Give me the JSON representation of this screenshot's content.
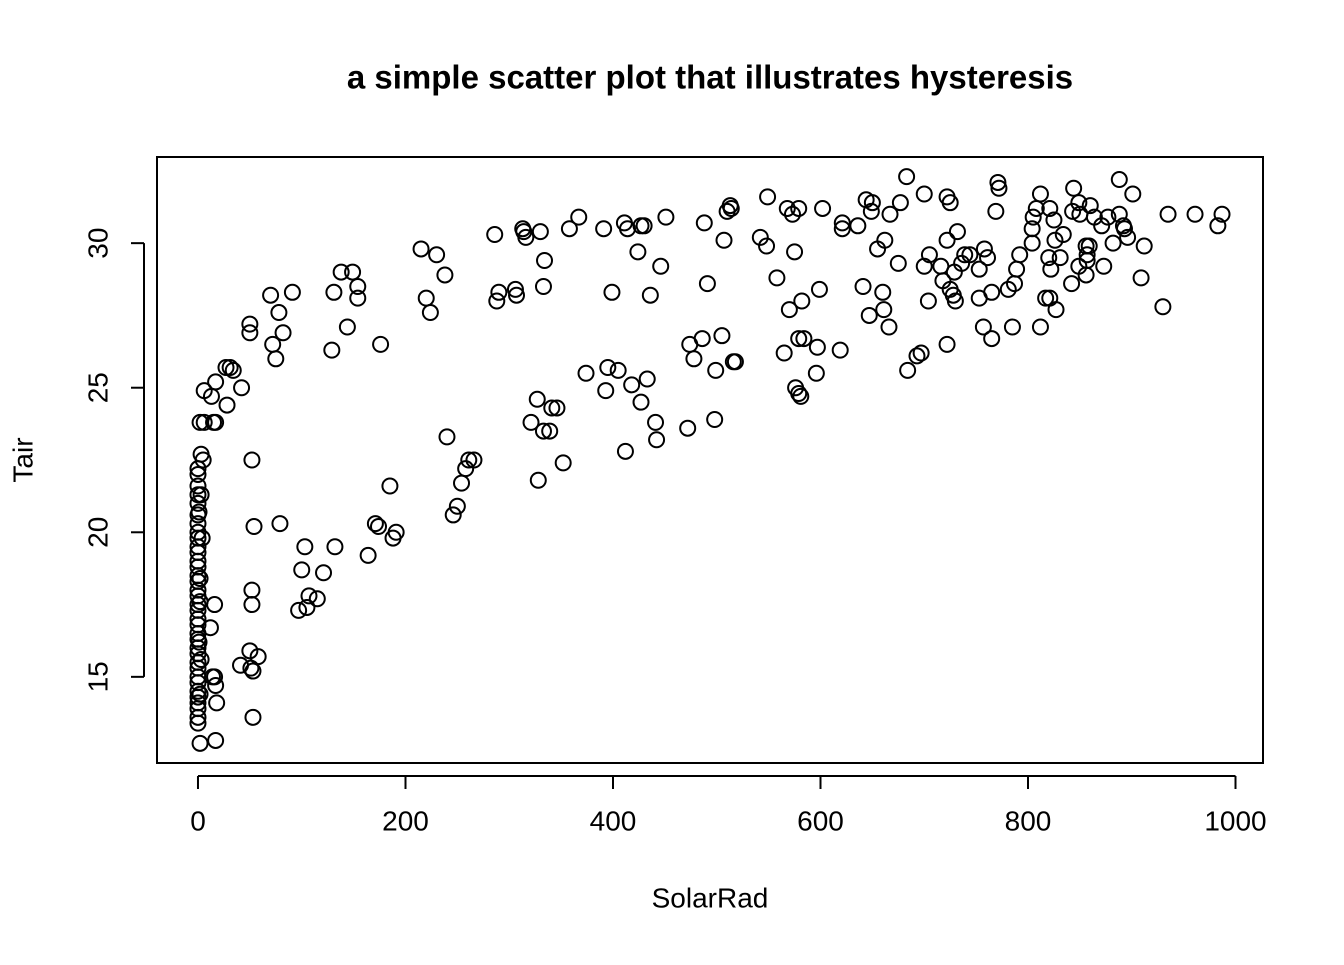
{
  "chart_data": {
    "type": "scatter",
    "title": "a simple scatter plot that illustrates hysteresis",
    "xlabel": "SolarRad",
    "ylabel": "Tair",
    "xlim": [
      -39.5,
      1026.5
    ],
    "ylim": [
      12.02,
      32.98
    ],
    "xticks": [
      0,
      200,
      400,
      600,
      800,
      1000
    ],
    "yticks": [
      15,
      20,
      25,
      30
    ],
    "color": "#000000",
    "grid": false,
    "x": [
      70,
      78,
      82,
      72,
      75,
      50,
      50,
      91,
      42,
      27,
      31,
      34,
      28,
      17,
      13,
      6,
      2,
      6,
      15,
      17,
      3,
      5,
      52,
      131,
      138,
      149,
      154,
      154,
      144,
      129,
      176,
      215,
      230,
      238,
      220,
      224,
      286,
      290,
      288,
      306,
      307,
      313,
      314,
      316,
      330,
      334,
      333,
      358,
      367,
      391,
      399,
      411,
      414,
      427,
      430,
      424,
      436,
      446,
      451,
      488,
      491,
      507,
      510,
      513,
      514,
      549,
      542,
      548,
      558,
      568,
      573,
      579,
      575,
      602,
      582,
      570,
      599,
      621,
      621,
      636,
      644,
      650,
      649,
      655,
      662,
      667,
      675,
      677,
      683,
      700,
      641,
      660,
      661,
      647,
      666,
      705,
      700,
      704,
      716,
      722,
      725,
      722,
      732,
      718,
      725,
      728,
      730,
      729,
      739,
      744,
      736,
      753,
      758,
      761,
      765,
      753,
      771,
      772,
      769,
      781,
      787,
      789,
      792,
      804,
      804,
      805,
      808,
      812,
      821,
      825,
      826,
      820,
      822,
      831,
      834,
      817,
      821,
      827,
      844,
      849,
      843,
      850,
      860,
      864,
      871,
      877,
      856,
      859,
      857,
      857,
      849,
      856,
      842,
      873,
      882,
      888,
      888,
      892,
      893,
      896,
      901,
      912,
      909,
      930,
      935,
      961,
      983,
      987,
      812,
      785,
      757,
      765,
      722,
      697,
      693,
      684,
      565,
      579,
      584,
      597,
      619,
      576,
      579,
      581,
      596,
      516,
      518,
      505,
      499,
      498,
      486,
      474,
      478,
      472,
      441,
      433,
      427,
      418,
      405,
      395,
      393,
      412,
      442,
      374,
      352,
      341,
      346,
      339,
      333,
      327,
      321,
      328,
      266,
      261,
      258,
      254,
      250,
      246,
      240,
      185,
      191,
      188,
      171,
      174,
      164,
      132,
      103,
      100,
      121,
      115,
      107,
      105,
      97,
      79,
      54,
      52,
      52,
      16,
      12,
      50,
      58,
      41,
      51,
      53,
      53,
      14,
      16,
      17,
      18,
      17,
      2,
      0,
      0,
      0,
      0,
      0,
      0,
      0,
      0,
      0,
      0,
      0,
      0,
      0,
      0,
      0,
      0,
      0,
      0,
      0,
      0,
      0,
      0,
      0,
      0,
      0,
      0,
      0,
      0,
      0,
      0,
      0,
      0,
      0,
      0,
      0,
      2,
      3,
      1,
      4,
      3,
      1,
      2,
      2
    ],
    "values": [
      28.2,
      27.6,
      26.9,
      26.5,
      26.0,
      27.2,
      26.9,
      28.3,
      25.0,
      25.7,
      25.7,
      25.6,
      24.4,
      25.2,
      24.7,
      24.9,
      23.8,
      23.8,
      23.8,
      23.8,
      22.7,
      22.5,
      22.5,
      28.3,
      29.0,
      29.0,
      28.5,
      28.1,
      27.1,
      26.3,
      26.5,
      29.8,
      29.6,
      28.9,
      28.1,
      27.6,
      30.3,
      28.3,
      28.0,
      28.4,
      28.2,
      30.5,
      30.4,
      30.2,
      30.4,
      29.4,
      28.5,
      30.5,
      30.9,
      30.5,
      28.3,
      30.7,
      30.5,
      30.6,
      30.6,
      29.7,
      28.2,
      29.2,
      30.9,
      30.7,
      28.6,
      30.1,
      31.1,
      31.3,
      31.2,
      31.6,
      30.2,
      29.9,
      28.8,
      31.2,
      31.0,
      31.2,
      29.7,
      31.2,
      28.0,
      27.7,
      28.4,
      30.7,
      30.5,
      30.6,
      31.5,
      31.4,
      31.1,
      29.8,
      30.1,
      31.0,
      29.3,
      31.4,
      32.3,
      31.7,
      28.5,
      28.3,
      27.7,
      27.5,
      27.1,
      29.6,
      29.2,
      28.0,
      29.2,
      31.6,
      31.4,
      30.1,
      30.4,
      28.7,
      28.4,
      28.2,
      28.0,
      29.0,
      29.6,
      29.6,
      29.3,
      29.1,
      29.8,
      29.5,
      28.3,
      28.1,
      32.1,
      31.9,
      31.1,
      28.4,
      28.6,
      29.1,
      29.6,
      30.0,
      30.5,
      30.9,
      31.2,
      31.7,
      31.2,
      30.8,
      30.1,
      29.5,
      29.1,
      29.5,
      30.3,
      28.1,
      28.1,
      27.7,
      31.9,
      31.4,
      31.1,
      31.0,
      31.3,
      30.9,
      30.6,
      30.9,
      29.9,
      29.9,
      29.6,
      29.4,
      29.2,
      28.9,
      28.6,
      29.2,
      30.0,
      32.2,
      31.0,
      30.6,
      30.5,
      30.2,
      31.7,
      29.9,
      28.8,
      27.8,
      31.0,
      31.0,
      30.6,
      31.0,
      27.1,
      27.1,
      27.1,
      26.7,
      26.5,
      26.2,
      26.1,
      25.6,
      26.2,
      26.7,
      26.7,
      26.4,
      26.3,
      25.0,
      24.8,
      24.7,
      25.5,
      25.9,
      25.9,
      26.8,
      25.6,
      23.9,
      26.7,
      26.5,
      26.0,
      23.6,
      23.8,
      25.3,
      24.5,
      25.1,
      25.6,
      25.7,
      24.9,
      22.8,
      23.2,
      25.5,
      22.4,
      24.3,
      24.3,
      23.5,
      23.5,
      24.6,
      23.8,
      21.8,
      22.5,
      22.5,
      22.2,
      21.7,
      20.9,
      20.6,
      23.3,
      21.6,
      20.0,
      19.8,
      20.3,
      20.2,
      19.2,
      19.5,
      19.5,
      18.7,
      18.6,
      17.7,
      17.8,
      17.4,
      17.3,
      20.3,
      20.2,
      18.0,
      17.5,
      17.5,
      16.7,
      15.9,
      15.7,
      15.4,
      15.3,
      15.2,
      13.6,
      15.0,
      15.0,
      14.7,
      14.1,
      12.8,
      12.7,
      13.4,
      13.6,
      13.9,
      14.1,
      14.3,
      14.5,
      14.8,
      15.0,
      15.3,
      15.5,
      15.8,
      16.0,
      16.3,
      16.5,
      16.8,
      17.0,
      17.3,
      17.5,
      17.8,
      18.0,
      18.3,
      18.5,
      18.8,
      19.0,
      19.3,
      19.5,
      19.8,
      20.0,
      20.3,
      20.6,
      21.0,
      21.3,
      21.6,
      22.0,
      22.2,
      14.4,
      21.3,
      20.7,
      19.8,
      15.6,
      16.2,
      17.6,
      18.4
    ]
  }
}
